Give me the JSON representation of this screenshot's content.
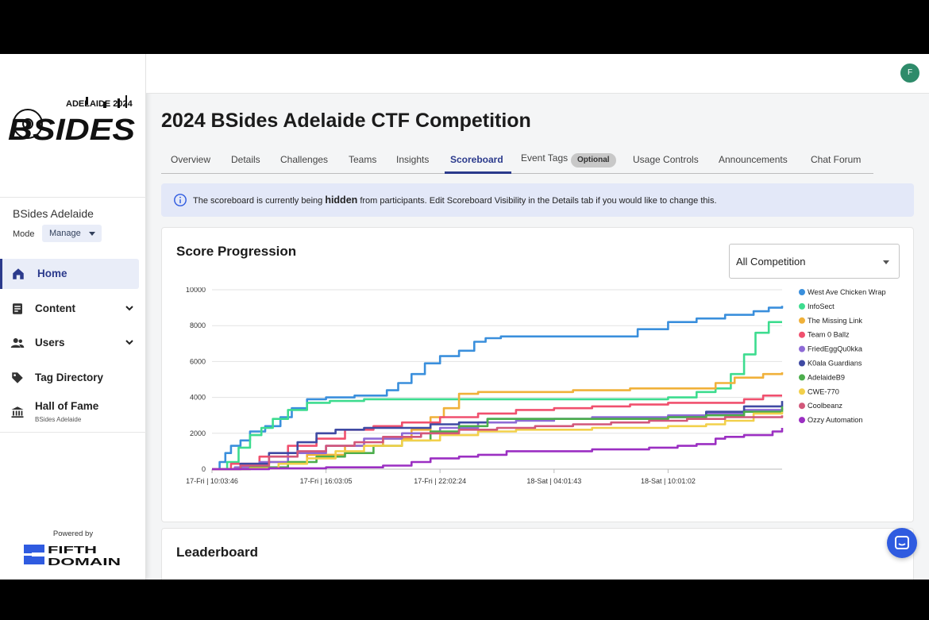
{
  "sidebar": {
    "logo_text_top": "ADELAIDE 2024",
    "logo_text_main": "BSIDES",
    "org_name": "BSides Adelaide",
    "mode_label": "Mode",
    "mode_value": "Manage",
    "nav": [
      {
        "label": "Home",
        "icon": "home-icon",
        "active": true
      },
      {
        "label": "Content",
        "icon": "document-icon",
        "expandable": true
      },
      {
        "label": "Users",
        "icon": "users-icon",
        "expandable": true
      },
      {
        "label": "Tag Directory",
        "icon": "tag-icon"
      },
      {
        "label": "Hall of Fame",
        "sublabel": "BSides Adelaide",
        "icon": "institution-icon"
      }
    ],
    "powered_by": "Powered by",
    "footer_logo_top": "FIFTH",
    "footer_logo_bottom": "DOMAIN"
  },
  "header": {
    "avatar_initial": "F"
  },
  "page": {
    "title": "2024 BSides Adelaide CTF Competition",
    "tabs": [
      {
        "label": "Overview"
      },
      {
        "label": "Details"
      },
      {
        "label": "Challenges"
      },
      {
        "label": "Teams"
      },
      {
        "label": "Insights"
      },
      {
        "label": "Scoreboard",
        "active": true
      },
      {
        "label": "Event Tags",
        "badge": "Optional"
      },
      {
        "label": "Usage Controls"
      },
      {
        "label": "Announcements"
      },
      {
        "label": "Chat Forum"
      }
    ],
    "banner": {
      "pre": "The scoreboard is currently being ",
      "bold": "hidden",
      "post": " from participants. Edit Scoreboard Visibility in the Details tab if you would like to change this."
    },
    "score_card": {
      "title": "Score Progression",
      "select_value": "All Competition"
    },
    "leaderboard_card": {
      "title": "Leaderboard"
    }
  },
  "colors": {
    "accent": "#2b3a8c",
    "banner_bg": "#e3e8f8",
    "fab": "#2f5be0"
  },
  "chart_data": {
    "type": "line",
    "xlabel": "",
    "ylabel": "",
    "ylim": [
      0,
      10000
    ],
    "y_ticks": [
      0,
      2000,
      4000,
      6000,
      8000,
      10000
    ],
    "x_tick_labels": [
      "17-Fri | 10:03:46",
      "17-Fri | 16:03:05",
      "17-Fri | 22:02:24",
      "18-Sat | 04:01:43",
      "18-Sat | 10:01:02"
    ],
    "x_ticks_hours": [
      0,
      6,
      12,
      18,
      24
    ],
    "x_range_hours": [
      0,
      30
    ],
    "grid": true,
    "legend_position": "right",
    "series": [
      {
        "name": "West Ave Chicken Wrap",
        "color": "#3a8fdc",
        "points": [
          [
            0,
            0
          ],
          [
            0.4,
            400
          ],
          [
            0.7,
            900
          ],
          [
            1.0,
            1300
          ],
          [
            1.5,
            1600
          ],
          [
            2.0,
            2100
          ],
          [
            2.8,
            2400
          ],
          [
            3.6,
            2900
          ],
          [
            4.2,
            3400
          ],
          [
            5.0,
            3900
          ],
          [
            6.0,
            4000
          ],
          [
            7.5,
            4100
          ],
          [
            8.6,
            4100
          ],
          [
            9.2,
            4400
          ],
          [
            9.8,
            4800
          ],
          [
            10.5,
            5300
          ],
          [
            11.2,
            5900
          ],
          [
            12.0,
            6300
          ],
          [
            13.0,
            6600
          ],
          [
            13.8,
            7100
          ],
          [
            14.4,
            7300
          ],
          [
            15.2,
            7400
          ],
          [
            17.0,
            7400
          ],
          [
            19.0,
            7400
          ],
          [
            21.8,
            7400
          ],
          [
            22.4,
            7800
          ],
          [
            24.0,
            8200
          ],
          [
            25.5,
            8400
          ],
          [
            27.0,
            8600
          ],
          [
            28.5,
            8800
          ],
          [
            29.3,
            9000
          ],
          [
            30.0,
            9100
          ]
        ]
      },
      {
        "name": "InfoSect",
        "color": "#3ddc8f",
        "points": [
          [
            0,
            0
          ],
          [
            0.8,
            400
          ],
          [
            1.4,
            1200
          ],
          [
            2.0,
            1900
          ],
          [
            2.6,
            2300
          ],
          [
            3.2,
            2800
          ],
          [
            4.0,
            3300
          ],
          [
            5.0,
            3700
          ],
          [
            6.2,
            3800
          ],
          [
            8.0,
            3900
          ],
          [
            10.0,
            3900
          ],
          [
            13.0,
            3900
          ],
          [
            15.0,
            3900
          ],
          [
            17.0,
            3900
          ],
          [
            19.0,
            3900
          ],
          [
            22.0,
            3900
          ],
          [
            24.0,
            4000
          ],
          [
            25.5,
            4300
          ],
          [
            26.5,
            4500
          ],
          [
            27.3,
            5300
          ],
          [
            28.0,
            6400
          ],
          [
            28.6,
            7600
          ],
          [
            29.3,
            8200
          ],
          [
            30.0,
            8200
          ]
        ]
      },
      {
        "name": "The Missing Link",
        "color": "#f0b13a",
        "points": [
          [
            0,
            0
          ],
          [
            1.5,
            200
          ],
          [
            3.0,
            400
          ],
          [
            5.0,
            800
          ],
          [
            7.0,
            1300
          ],
          [
            9.0,
            1700
          ],
          [
            10.5,
            2200
          ],
          [
            11.5,
            2900
          ],
          [
            12.2,
            3400
          ],
          [
            13.0,
            4200
          ],
          [
            14.0,
            4300
          ],
          [
            16.0,
            4300
          ],
          [
            19.0,
            4400
          ],
          [
            22.0,
            4500
          ],
          [
            24.0,
            4500
          ],
          [
            25.5,
            4500
          ],
          [
            26.5,
            4800
          ],
          [
            27.5,
            5100
          ],
          [
            29.0,
            5300
          ],
          [
            30.0,
            5400
          ]
        ]
      },
      {
        "name": "Team 0 Ballz",
        "color": "#f0506e",
        "points": [
          [
            0,
            0
          ],
          [
            1.0,
            300
          ],
          [
            2.5,
            700
          ],
          [
            4.0,
            1300
          ],
          [
            5.5,
            1700
          ],
          [
            7.0,
            2200
          ],
          [
            8.5,
            2400
          ],
          [
            10.0,
            2600
          ],
          [
            12.0,
            2900
          ],
          [
            14.0,
            3100
          ],
          [
            16.0,
            3300
          ],
          [
            18.0,
            3400
          ],
          [
            20.0,
            3500
          ],
          [
            22.0,
            3600
          ],
          [
            24.0,
            3700
          ],
          [
            26.0,
            3700
          ],
          [
            28.0,
            3900
          ],
          [
            29.0,
            4100
          ],
          [
            30.0,
            4100
          ]
        ]
      },
      {
        "name": "FriedEggQu0kka",
        "color": "#8e6bd6",
        "points": [
          [
            0,
            0
          ],
          [
            1.2,
            100
          ],
          [
            2.5,
            400
          ],
          [
            4.0,
            900
          ],
          [
            6.0,
            1300
          ],
          [
            8.0,
            1700
          ],
          [
            10.0,
            2000
          ],
          [
            12.0,
            2300
          ],
          [
            14.0,
            2600
          ],
          [
            16.0,
            2700
          ],
          [
            18.0,
            2800
          ],
          [
            20.0,
            2900
          ],
          [
            22.0,
            2900
          ],
          [
            24.0,
            3000
          ],
          [
            26.0,
            3100
          ],
          [
            28.0,
            3300
          ],
          [
            30.0,
            3400
          ]
        ]
      },
      {
        "name": "K0ala Guardians",
        "color": "#3f4aa3",
        "points": [
          [
            0,
            0
          ],
          [
            1.5,
            300
          ],
          [
            3.0,
            900
          ],
          [
            4.5,
            1500
          ],
          [
            5.5,
            2000
          ],
          [
            6.5,
            2200
          ],
          [
            8.0,
            2300
          ],
          [
            10.0,
            2300
          ],
          [
            11.5,
            2500
          ],
          [
            13.0,
            2600
          ],
          [
            14.5,
            2800
          ],
          [
            16.0,
            2800
          ],
          [
            18.0,
            2800
          ],
          [
            20.0,
            2800
          ],
          [
            22.0,
            2800
          ],
          [
            24.0,
            2900
          ],
          [
            26.0,
            3200
          ],
          [
            28.0,
            3500
          ],
          [
            30.0,
            3800
          ]
        ]
      },
      {
        "name": "AdelaideB9",
        "color": "#4cae4c",
        "points": [
          [
            0,
            0
          ],
          [
            2.0,
            100
          ],
          [
            4.0,
            400
          ],
          [
            5.5,
            700
          ],
          [
            7.0,
            900
          ],
          [
            8.5,
            1300
          ],
          [
            10.0,
            1600
          ],
          [
            11.5,
            2100
          ],
          [
            13.0,
            2400
          ],
          [
            14.5,
            2800
          ],
          [
            16.0,
            2800
          ],
          [
            18.0,
            2800
          ],
          [
            20.0,
            2800
          ],
          [
            22.0,
            2800
          ],
          [
            24.0,
            2900
          ],
          [
            26.0,
            3000
          ],
          [
            28.0,
            3200
          ],
          [
            30.0,
            3500
          ]
        ]
      },
      {
        "name": "CWE-770",
        "color": "#f2d04b",
        "points": [
          [
            0,
            0
          ],
          [
            2.0,
            50
          ],
          [
            3.5,
            300
          ],
          [
            5.0,
            600
          ],
          [
            6.5,
            1000
          ],
          [
            8.0,
            1300
          ],
          [
            10.0,
            1600
          ],
          [
            12.0,
            1900
          ],
          [
            14.0,
            2100
          ],
          [
            16.0,
            2200
          ],
          [
            18.0,
            2200
          ],
          [
            20.0,
            2300
          ],
          [
            22.0,
            2300
          ],
          [
            24.0,
            2400
          ],
          [
            26.0,
            2500
          ],
          [
            27.0,
            2700
          ],
          [
            28.5,
            3100
          ],
          [
            30.0,
            3200
          ]
        ]
      },
      {
        "name": "Coolbeanz",
        "color": "#d2577a",
        "points": [
          [
            0,
            0
          ],
          [
            1.5,
            200
          ],
          [
            3.0,
            700
          ],
          [
            4.5,
            1000
          ],
          [
            6.0,
            1300
          ],
          [
            7.5,
            1500
          ],
          [
            9.0,
            1800
          ],
          [
            11.0,
            2000
          ],
          [
            13.0,
            2200
          ],
          [
            15.0,
            2300
          ],
          [
            17.0,
            2400
          ],
          [
            19.0,
            2500
          ],
          [
            21.0,
            2600
          ],
          [
            23.0,
            2700
          ],
          [
            25.0,
            2800
          ],
          [
            27.0,
            2900
          ],
          [
            30.0,
            3000
          ]
        ]
      },
      {
        "name": "Ozzy Automation",
        "color": "#9b2fc2",
        "points": [
          [
            0,
            0
          ],
          [
            3.0,
            50
          ],
          [
            6.0,
            100
          ],
          [
            9.0,
            200
          ],
          [
            10.5,
            400
          ],
          [
            11.5,
            600
          ],
          [
            13.0,
            700
          ],
          [
            14.0,
            800
          ],
          [
            15.5,
            1000
          ],
          [
            17.0,
            1000
          ],
          [
            19.0,
            1000
          ],
          [
            20.0,
            1100
          ],
          [
            21.0,
            1100
          ],
          [
            23.0,
            1200
          ],
          [
            24.5,
            1300
          ],
          [
            25.5,
            1400
          ],
          [
            26.5,
            1700
          ],
          [
            27.0,
            1800
          ],
          [
            28.0,
            1900
          ],
          [
            29.5,
            2100
          ],
          [
            30.0,
            2300
          ]
        ]
      }
    ]
  }
}
